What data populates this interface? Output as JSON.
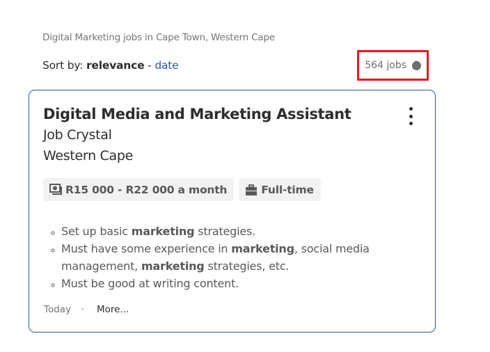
{
  "header": {
    "breadcrumb": "Digital Marketing jobs in Cape Town, Western Cape"
  },
  "sort": {
    "label": "Sort by:",
    "active": "relevance",
    "separator": "-",
    "alt": "date"
  },
  "count": {
    "text": "564 jobs",
    "help_icon": "question-circle-icon",
    "highlight_color": "#e8161e"
  },
  "job": {
    "title": "Digital Media and Marketing Assistant",
    "company": "Job Crystal",
    "location": "Western Cape",
    "menu_icon": "more-vertical-icon",
    "tags": [
      {
        "icon": "money-icon",
        "label": "R15 000 - R22 000 a month"
      },
      {
        "icon": "briefcase-icon",
        "label": "Full-time"
      }
    ],
    "snippet": [
      [
        {
          "t": "Set up basic "
        },
        {
          "t": "marketing",
          "b": true
        },
        {
          "t": " strategies."
        }
      ],
      [
        {
          "t": "Must have some experience in "
        },
        {
          "t": "marketing",
          "b": true
        },
        {
          "t": ", social media management, "
        },
        {
          "t": "marketing",
          "b": true
        },
        {
          "t": " strategies, etc."
        }
      ],
      [
        {
          "t": "Must be good at writing content."
        }
      ]
    ],
    "posted": "Today",
    "dot": "·",
    "more": "More..."
  },
  "colors": {
    "border": "#2557a7",
    "link": "#2557a7",
    "tag_bg": "#f3f2f1"
  }
}
